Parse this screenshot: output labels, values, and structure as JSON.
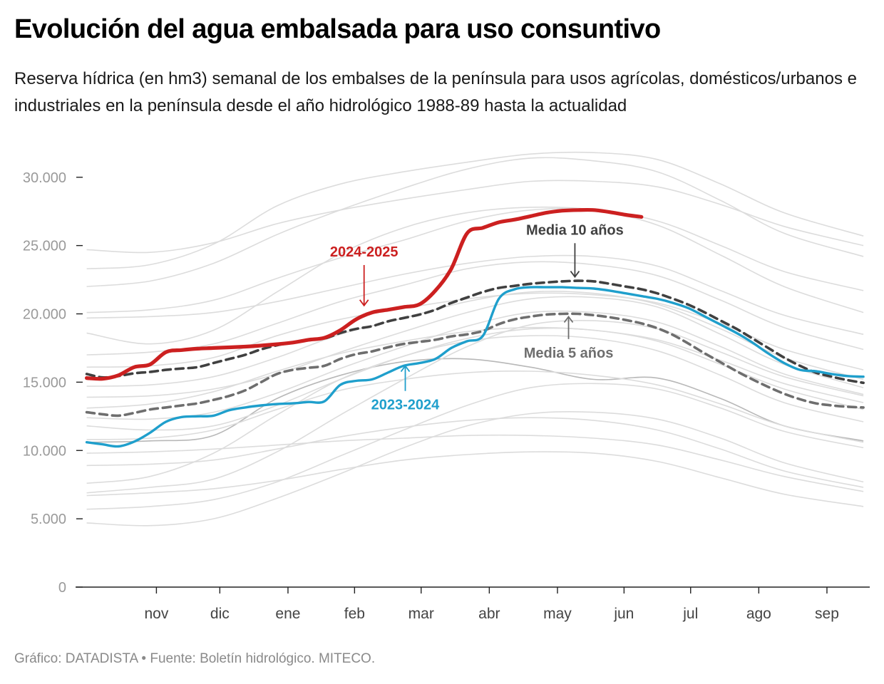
{
  "title": "Evolución del agua embalsada para uso consuntivo",
  "subtitle": "Reserva hídrica (en hm3) semanal de los embalses de la península para usos agrícolas, domésticos/urbanos e industriales en la península desde el año hidrológico 1988-89 hasta la actualidad",
  "footer": "Gráfico: DATADISTA • Fuente: Boletín hidrológico. MITECO.",
  "colors": {
    "current": "#cc2020",
    "previous": "#1f9fcc",
    "avg10": "#404040",
    "avg5": "#6e6e6e",
    "historical": "#dcdcdc",
    "highlight_hist": "#b8b8b8",
    "axis": "#222222",
    "tick_text": "#9a9a9a"
  },
  "chart_data": {
    "type": "line",
    "title": "Evolución del agua embalsada para uso consuntivo",
    "xlabel": "",
    "ylabel": "",
    "x_ticks": [
      "nov",
      "dic",
      "ene",
      "feb",
      "mar",
      "abr",
      "may",
      "jun",
      "jul",
      "ago",
      "sep"
    ],
    "x_tick_positions": [
      4.4,
      8.4,
      12.7,
      16.9,
      21.1,
      25.4,
      29.7,
      33.9,
      38.1,
      42.4,
      46.7
    ],
    "xlim": [
      -0.7,
      49.4
    ],
    "y_ticks": [
      "0",
      "5.000",
      "10.000",
      "15.000",
      "20.000",
      "25.000",
      "30.000"
    ],
    "y_tick_values": [
      0,
      5000,
      10000,
      15000,
      20000,
      25000,
      30000
    ],
    "ylim": [
      0,
      31500
    ],
    "grid": false,
    "x_unit": "week of the hydrological year",
    "y_unit": "hm3",
    "series": [
      {
        "name": "2024-2025",
        "role": "current",
        "x": [
          0,
          1,
          2,
          3,
          4,
          5,
          6,
          7,
          8,
          9,
          10,
          11,
          12,
          13,
          14,
          15,
          16,
          17,
          18,
          19,
          20,
          21,
          22,
          23,
          24,
          25,
          26,
          27,
          28,
          29,
          30,
          31,
          32,
          33,
          34,
          35
        ],
        "values": [
          15300,
          15250,
          15500,
          16100,
          16300,
          17200,
          17350,
          17450,
          17500,
          17550,
          17600,
          17680,
          17780,
          17900,
          18100,
          18250,
          18800,
          19600,
          20100,
          20300,
          20500,
          20700,
          21700,
          23300,
          25900,
          26300,
          26700,
          26900,
          27150,
          27400,
          27550,
          27600,
          27600,
          27450,
          27250,
          27100
        ]
      },
      {
        "name": "2023-2024",
        "role": "previous",
        "x": [
          0,
          1,
          2,
          3,
          4,
          5,
          6,
          7,
          8,
          9,
          10,
          11,
          12,
          13,
          14,
          15,
          16,
          17,
          18,
          19,
          20,
          21,
          22,
          23,
          24,
          25,
          26,
          27,
          28,
          29,
          30,
          31,
          32,
          33,
          34,
          35,
          36,
          37,
          38,
          39,
          40,
          41,
          42,
          43,
          44,
          45,
          46,
          47,
          48,
          49
        ],
        "values": [
          10600,
          10450,
          10300,
          10650,
          11300,
          12100,
          12450,
          12500,
          12550,
          12950,
          13150,
          13300,
          13400,
          13450,
          13550,
          13600,
          14800,
          15100,
          15200,
          15700,
          16200,
          16400,
          16700,
          17500,
          18000,
          18400,
          21100,
          21800,
          21950,
          21950,
          21950,
          21900,
          21850,
          21700,
          21500,
          21300,
          21100,
          20800,
          20400,
          19800,
          19200,
          18600,
          17900,
          17100,
          16400,
          15900,
          15800,
          15600,
          15450,
          15400
        ]
      },
      {
        "name": "Media 10 años",
        "role": "avg10",
        "x": [
          0,
          1,
          2,
          3,
          4,
          5,
          6,
          7,
          8,
          9,
          10,
          11,
          12,
          13,
          14,
          15,
          16,
          17,
          18,
          19,
          20,
          21,
          22,
          23,
          24,
          25,
          26,
          27,
          28,
          29,
          30,
          31,
          32,
          33,
          34,
          35,
          36,
          37,
          38,
          39,
          40,
          41,
          42,
          43,
          44,
          45,
          46,
          47,
          48,
          49
        ],
        "values": [
          15600,
          15350,
          15450,
          15650,
          15750,
          15900,
          16000,
          16100,
          16400,
          16700,
          17000,
          17400,
          17700,
          17900,
          18100,
          18200,
          18600,
          18900,
          19100,
          19450,
          19700,
          19950,
          20300,
          20800,
          21200,
          21600,
          21900,
          22050,
          22200,
          22300,
          22380,
          22420,
          22380,
          22200,
          22000,
          21800,
          21500,
          21100,
          20650,
          20100,
          19500,
          18900,
          18200,
          17500,
          16800,
          16200,
          15700,
          15400,
          15150,
          14950
        ]
      },
      {
        "name": "Media 5 años",
        "role": "avg5",
        "x": [
          0,
          1,
          2,
          3,
          4,
          5,
          6,
          7,
          8,
          9,
          10,
          11,
          12,
          13,
          14,
          15,
          16,
          17,
          18,
          19,
          20,
          21,
          22,
          23,
          24,
          25,
          26,
          27,
          28,
          29,
          30,
          31,
          32,
          33,
          34,
          35,
          36,
          37,
          38,
          39,
          40,
          41,
          42,
          43,
          44,
          45,
          46,
          47,
          48,
          49
        ],
        "values": [
          12800,
          12650,
          12550,
          12750,
          13000,
          13150,
          13300,
          13450,
          13700,
          14000,
          14400,
          15000,
          15600,
          15900,
          16050,
          16200,
          16700,
          17050,
          17250,
          17550,
          17800,
          17950,
          18100,
          18350,
          18500,
          18750,
          19250,
          19600,
          19800,
          19950,
          20000,
          20000,
          19900,
          19750,
          19550,
          19300,
          18950,
          18450,
          17800,
          17100,
          16450,
          15800,
          15200,
          14650,
          14150,
          13750,
          13450,
          13300,
          13200,
          13150
        ]
      },
      {
        "name": "",
        "role": "highlight_hist",
        "x": [
          0,
          4,
          8,
          12,
          16,
          20,
          24,
          28,
          32,
          36,
          40,
          44,
          49
        ],
        "values": [
          10600,
          10700,
          11100,
          13800,
          15500,
          16500,
          16700,
          16100,
          15200,
          15300,
          13800,
          11800,
          10700
        ]
      },
      {
        "name": "",
        "role": "historical",
        "x": [
          0,
          4,
          8,
          12,
          16,
          20,
          24,
          28,
          32,
          36,
          40,
          44,
          49
        ],
        "values": [
          24700,
          24500,
          25200,
          26600,
          27600,
          28400,
          29100,
          29700,
          29700,
          29300,
          28000,
          26400,
          25000
        ]
      },
      {
        "name": "",
        "role": "historical",
        "x": [
          0,
          4,
          8,
          12,
          16,
          20,
          24,
          28,
          32,
          36,
          40,
          44,
          49
        ],
        "values": [
          23300,
          23600,
          25100,
          27900,
          29500,
          30400,
          31100,
          31700,
          31800,
          31300,
          29500,
          27400,
          25700
        ]
      },
      {
        "name": "",
        "role": "historical",
        "x": [
          0,
          4,
          8,
          12,
          16,
          20,
          24,
          28,
          32,
          36,
          40,
          44,
          49
        ],
        "values": [
          22000,
          22400,
          23700,
          25800,
          27600,
          29200,
          30600,
          31400,
          31200,
          30400,
          28300,
          25900,
          24200
        ]
      },
      {
        "name": "",
        "role": "historical",
        "x": [
          0,
          4,
          8,
          12,
          16,
          20,
          24,
          28,
          32,
          36,
          40,
          44,
          49
        ],
        "values": [
          20100,
          20300,
          21000,
          22600,
          24100,
          25400,
          26800,
          27600,
          27600,
          26800,
          25000,
          23100,
          21700
        ]
      },
      {
        "name": "",
        "role": "historical",
        "x": [
          0,
          4,
          8,
          12,
          16,
          20,
          24,
          28,
          32,
          36,
          40,
          44,
          49
        ],
        "values": [
          19700,
          19800,
          20100,
          20900,
          21900,
          22900,
          23700,
          24200,
          24200,
          23500,
          21700,
          19900,
          18500
        ]
      },
      {
        "name": "",
        "role": "historical",
        "x": [
          0,
          4,
          8,
          12,
          16,
          20,
          24,
          28,
          32,
          36,
          40,
          44,
          49
        ],
        "values": [
          18600,
          17800,
          18800,
          21600,
          24400,
          26300,
          27400,
          27800,
          27600,
          26500,
          24300,
          22000,
          20100
        ]
      },
      {
        "name": "",
        "role": "historical",
        "x": [
          0,
          4,
          8,
          12,
          16,
          20,
          24,
          28,
          32,
          36,
          40,
          44,
          49
        ],
        "values": [
          17000,
          17200,
          17800,
          19300,
          20900,
          22100,
          23300,
          23800,
          23600,
          22800,
          21000,
          19000,
          17400
        ]
      },
      {
        "name": "",
        "role": "historical",
        "x": [
          0,
          4,
          8,
          12,
          16,
          20,
          24,
          28,
          32,
          36,
          40,
          44,
          49
        ],
        "values": [
          16100,
          16200,
          16800,
          18400,
          19600,
          20400,
          21100,
          21500,
          21400,
          20800,
          19300,
          17400,
          15900
        ]
      },
      {
        "name": "",
        "role": "historical",
        "x": [
          0,
          4,
          8,
          12,
          16,
          20,
          24,
          28,
          32,
          36,
          40,
          44,
          49
        ],
        "values": [
          14700,
          14800,
          15400,
          16800,
          18500,
          19700,
          20900,
          21600,
          21500,
          20700,
          18900,
          16800,
          15200
        ]
      },
      {
        "name": "",
        "role": "historical",
        "x": [
          0,
          4,
          8,
          12,
          16,
          20,
          24,
          28,
          32,
          36,
          40,
          44,
          49
        ],
        "values": [
          13900,
          14000,
          14500,
          15600,
          17200,
          18700,
          20100,
          21100,
          21200,
          20500,
          18500,
          16300,
          14600
        ]
      },
      {
        "name": "",
        "role": "historical",
        "x": [
          0,
          4,
          8,
          12,
          16,
          20,
          24,
          28,
          32,
          36,
          40,
          44,
          49
        ],
        "values": [
          12400,
          12300,
          12800,
          14200,
          16000,
          17600,
          19100,
          20100,
          20100,
          19400,
          17600,
          15600,
          14100
        ]
      },
      {
        "name": "",
        "role": "historical",
        "x": [
          0,
          4,
          8,
          12,
          16,
          20,
          24,
          28,
          32,
          36,
          40,
          44,
          49
        ],
        "values": [
          11800,
          11500,
          11800,
          13300,
          15200,
          16900,
          18200,
          18900,
          18800,
          18000,
          16300,
          14500,
          13000
        ]
      },
      {
        "name": "",
        "role": "historical",
        "x": [
          0,
          4,
          8,
          12,
          16,
          20,
          24,
          28,
          32,
          36,
          40,
          44,
          49
        ],
        "values": [
          10800,
          10900,
          11500,
          13000,
          14400,
          15200,
          15700,
          15800,
          15500,
          14800,
          13400,
          11800,
          10600
        ]
      },
      {
        "name": "",
        "role": "historical",
        "x": [
          0,
          4,
          8,
          12,
          16,
          20,
          24,
          28,
          32,
          36,
          40,
          44,
          49
        ],
        "values": [
          9800,
          9900,
          10100,
          10400,
          10700,
          10900,
          11100,
          11100,
          10900,
          10400,
          9300,
          8100,
          7000
        ]
      },
      {
        "name": "",
        "role": "historical",
        "x": [
          0,
          4,
          8,
          12,
          16,
          20,
          24,
          28,
          32,
          36,
          40,
          44,
          49
        ],
        "values": [
          8900,
          9000,
          9300,
          10100,
          11000,
          11700,
          12200,
          12400,
          12200,
          11500,
          10100,
          8500,
          7300
        ]
      },
      {
        "name": "",
        "role": "historical",
        "x": [
          0,
          4,
          8,
          12,
          16,
          20,
          24,
          28,
          32,
          36,
          40,
          44,
          49
        ],
        "values": [
          6900,
          7300,
          7900,
          9900,
          12600,
          15200,
          17600,
          19200,
          19500,
          18900,
          17200,
          15400,
          14000
        ]
      },
      {
        "name": "",
        "role": "historical",
        "x": [
          0,
          4,
          8,
          12,
          16,
          20,
          24,
          28,
          32,
          36,
          40,
          44,
          49
        ],
        "values": [
          6700,
          6900,
          7200,
          7800,
          8600,
          9300,
          9700,
          9900,
          9800,
          9200,
          8000,
          6800,
          5900
        ]
      },
      {
        "name": "",
        "role": "historical",
        "x": [
          0,
          4,
          8,
          12,
          16,
          20,
          24,
          28,
          32,
          36,
          40,
          44,
          49
        ],
        "values": [
          4700,
          4500,
          5000,
          6500,
          8300,
          10200,
          11800,
          12700,
          12800,
          12300,
          10900,
          9100,
          7700
        ]
      },
      {
        "name": "",
        "role": "historical",
        "x": [
          0,
          4,
          8,
          12,
          16,
          20,
          24,
          28,
          32,
          36,
          40,
          44,
          49
        ],
        "values": [
          5700,
          5900,
          6400,
          7700,
          9600,
          11500,
          13300,
          14600,
          14900,
          14500,
          13100,
          11400,
          10200
        ]
      },
      {
        "name": "",
        "role": "historical",
        "x": [
          0,
          4,
          8,
          12,
          16,
          20,
          24,
          28,
          32,
          36,
          40,
          44,
          49
        ],
        "values": [
          7600,
          8100,
          9800,
          12600,
          15200,
          16900,
          18000,
          18400,
          18200,
          17300,
          15500,
          13500,
          12100
        ]
      },
      {
        "name": "",
        "role": "historical",
        "x": [
          0,
          4,
          8,
          12,
          16,
          20,
          24,
          28,
          32,
          36,
          40,
          44,
          49
        ],
        "values": [
          13100,
          13400,
          14300,
          15800,
          17100,
          18000,
          18700,
          19000,
          18800,
          18100,
          16600,
          14900,
          13500
        ]
      }
    ],
    "annotations": [
      {
        "text": "2024-2025",
        "series": "2024-2025",
        "x": 17.5,
        "y": 24200,
        "arrow_to_y": 20400,
        "color": "#cc2020",
        "placement": "above"
      },
      {
        "text": "2023-2024",
        "series": "2023-2024",
        "x": 20.1,
        "y": 13000,
        "arrow_to_y": 16400,
        "color": "#1f9fcc",
        "placement": "below"
      },
      {
        "text": "Media 10 años",
        "series": "Media 10 años",
        "x": 30.8,
        "y": 25800,
        "arrow_to_y": 22500,
        "color": "#404040",
        "placement": "above"
      },
      {
        "text": "Media 5 años",
        "series": "Media 5 años",
        "x": 30.4,
        "y": 16800,
        "arrow_to_y": 20000,
        "color": "#6e6e6e",
        "placement": "below"
      }
    ]
  }
}
